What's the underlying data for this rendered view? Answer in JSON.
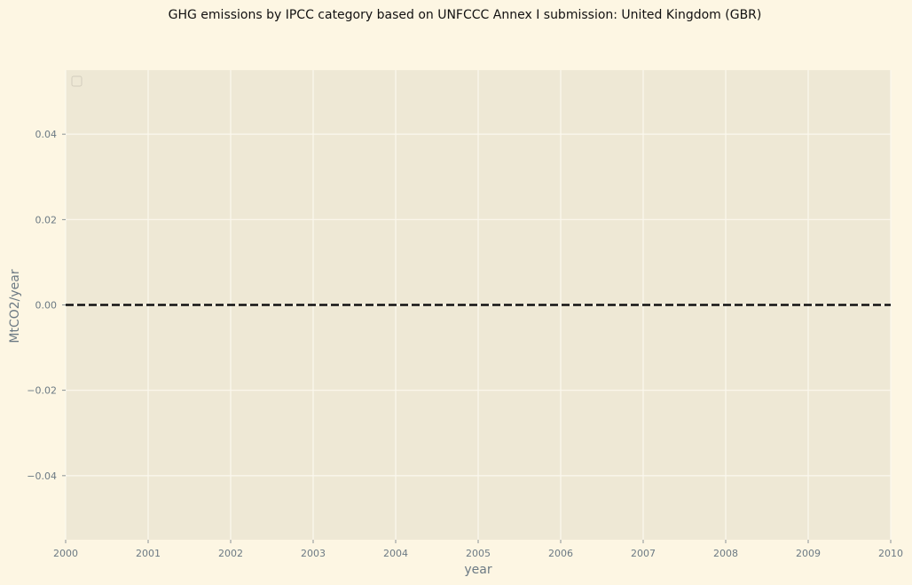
{
  "chart_data": {
    "type": "line",
    "title": "GHG emissions by IPCC category based on UNFCCC Annex I submission: United Kingdom (GBR)",
    "xlabel": "year",
    "ylabel": "MtCO2/year",
    "xlim": [
      2000,
      2010
    ],
    "ylim": [
      -0.055,
      0.055
    ],
    "x_ticks": [
      "2000",
      "2001",
      "2002",
      "2003",
      "2004",
      "2005",
      "2006",
      "2007",
      "2008",
      "2009",
      "2010"
    ],
    "y_ticks": [
      "0.04",
      "0.02",
      "0.00",
      "−0.02",
      "−0.04"
    ],
    "y_tick_values": [
      0.04,
      0.02,
      0.0,
      -0.02,
      -0.04
    ],
    "grid": true,
    "legend": {
      "placement": "upper-left",
      "entries": []
    },
    "series": [],
    "reference_line": {
      "y": 0,
      "style": "dashed",
      "color": "#111111"
    },
    "colors": {
      "figure_background": "#fdf6e3",
      "plot_background": "#eee8d5",
      "grid": "#fbf8ee",
      "tick_text": "#6c7a84",
      "title_text": "#111111"
    }
  }
}
